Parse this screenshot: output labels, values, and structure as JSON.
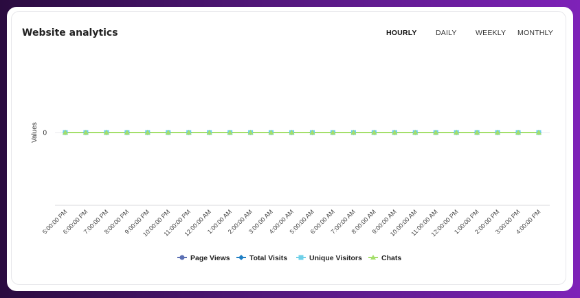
{
  "header": {
    "title": "Website analytics",
    "tabs": [
      {
        "label": "HOURLY",
        "active": true
      },
      {
        "label": "DAILY",
        "active": false
      },
      {
        "label": "WEEKLY",
        "active": false
      },
      {
        "label": "MONTHLY",
        "active": false
      }
    ]
  },
  "chart_data": {
    "type": "line",
    "ylabel": "Values",
    "y_ticks": [
      "0"
    ],
    "categories": [
      "5:00:00 PM",
      "6:00:00 PM",
      "7:00:00 PM",
      "8:00:00 PM",
      "9:00:00 PM",
      "10:00:00 PM",
      "11:00:00 PM",
      "12:00:00 AM",
      "1:00:00 AM",
      "2:00:00 AM",
      "3:00:00 AM",
      "4:00:00 AM",
      "5:00:00 AM",
      "6:00:00 AM",
      "7:00:00 AM",
      "8:00:00 AM",
      "9:00:00 AM",
      "10:00:00 AM",
      "11:00:00 AM",
      "12:00:00 PM",
      "1:00:00 PM",
      "2:00:00 PM",
      "3:00:00 PM",
      "4:00:00 PM"
    ],
    "series": [
      {
        "name": "Page Views",
        "color": "#5b6fb3",
        "marker": "circle",
        "values": [
          0,
          0,
          0,
          0,
          0,
          0,
          0,
          0,
          0,
          0,
          0,
          0,
          0,
          0,
          0,
          0,
          0,
          0,
          0,
          0,
          0,
          0,
          0,
          0
        ]
      },
      {
        "name": "Total Visits",
        "color": "#1f7fc4",
        "marker": "diamond",
        "values": [
          0,
          0,
          0,
          0,
          0,
          0,
          0,
          0,
          0,
          0,
          0,
          0,
          0,
          0,
          0,
          0,
          0,
          0,
          0,
          0,
          0,
          0,
          0,
          0
        ]
      },
      {
        "name": "Unique Visitors",
        "color": "#6fd0e8",
        "marker": "square",
        "values": [
          0,
          0,
          0,
          0,
          0,
          0,
          0,
          0,
          0,
          0,
          0,
          0,
          0,
          0,
          0,
          0,
          0,
          0,
          0,
          0,
          0,
          0,
          0,
          0
        ]
      },
      {
        "name": "Chats",
        "color": "#a4df6a",
        "marker": "triangle",
        "values": [
          0,
          0,
          0,
          0,
          0,
          0,
          0,
          0,
          0,
          0,
          0,
          0,
          0,
          0,
          0,
          0,
          0,
          0,
          0,
          0,
          0,
          0,
          0,
          0
        ]
      }
    ],
    "legend_position": "bottom-center"
  }
}
